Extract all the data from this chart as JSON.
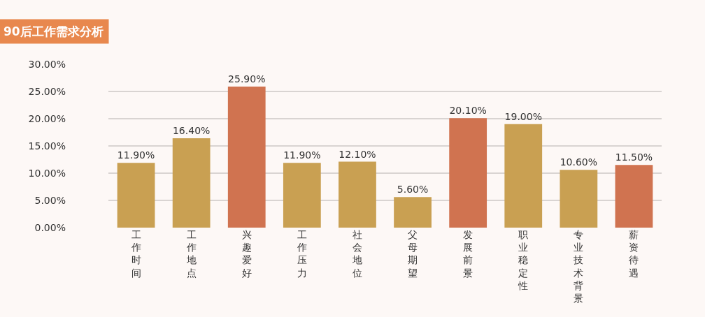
{
  "chart_data": {
    "type": "bar",
    "title": "90后工作需求分析",
    "categories": [
      "工作时间",
      "工作地点",
      "兴趣爱好",
      "工作压力",
      "社会地位",
      "父母期望",
      "发展前景",
      "职业稳定性",
      "专业技术背景",
      "薪资待遇"
    ],
    "values": [
      11.9,
      16.4,
      25.9,
      11.9,
      12.1,
      5.6,
      20.1,
      19.0,
      10.6,
      11.5
    ],
    "colors": [
      "#c9a052",
      "#c9a052",
      "#d07350",
      "#c9a052",
      "#c9a052",
      "#c9a052",
      "#d07350",
      "#c9a052",
      "#c9a052",
      "#d07350"
    ],
    "value_labels": [
      "11.90%",
      "16.40%",
      "25.90%",
      "11.90%",
      "12.10%",
      "5.60%",
      "20.10%",
      "19.00%",
      "10.60%",
      "11.50%"
    ],
    "ylim": [
      0,
      30
    ],
    "yticks": [
      {
        "value": 0,
        "label": "0.00%"
      },
      {
        "value": 5,
        "label": "5.00%"
      },
      {
        "value": 10,
        "label": "10.00%"
      },
      {
        "value": 15,
        "label": "15.00%"
      },
      {
        "value": 20,
        "label": "20.00%"
      },
      {
        "value": 25,
        "label": "25.00%"
      },
      {
        "value": 30,
        "label": "30.00%"
      }
    ],
    "grid": "y",
    "legend": false
  }
}
